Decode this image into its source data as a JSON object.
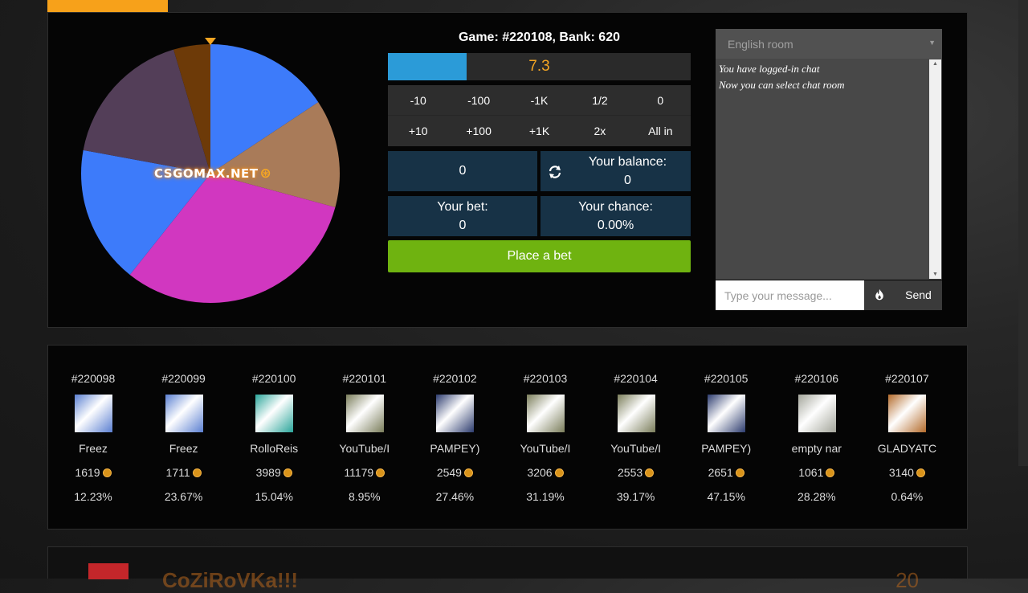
{
  "game": {
    "title": "Game: #220108, Bank: 620",
    "timer_value": "7.3",
    "timer_progress": 0.26
  },
  "wheel": {
    "logo_text": "CSGOMAX.NET",
    "slices": [
      {
        "value": 0.157,
        "color": "#3d7bfa"
      },
      {
        "value": 0.135,
        "color": "#a97b59"
      },
      {
        "value": 0.315,
        "color": "#d137c0"
      },
      {
        "value": 0.172,
        "color": "#3d7bfa"
      },
      {
        "value": 0.175,
        "color": "#533e58"
      },
      {
        "value": 0.046,
        "color": "#6d3a08"
      }
    ],
    "pointer_color": "#f5a623"
  },
  "adjust_buttons": {
    "row1": [
      "-10",
      "-100",
      "-1K",
      "1/2",
      "0"
    ],
    "row2": [
      "+10",
      "+100",
      "+1K",
      "2x",
      "All in"
    ]
  },
  "bet": {
    "input_value": "0",
    "balance_label": "Your balance:",
    "balance_value": "0",
    "your_bet_label": "Your bet:",
    "your_bet_value": "0",
    "chance_label": "Your chance:",
    "chance_value": "0.00%",
    "place_bet_label": "Place a bet"
  },
  "chat": {
    "room": "English room",
    "messages": [
      "You have logged-in chat",
      "Now you can select chat room"
    ],
    "input_placeholder": "Type your message...",
    "send_label": "Send"
  },
  "history": [
    {
      "id": "#220098",
      "name": "Freez",
      "amount": "1619",
      "chance": "12.23%",
      "avatar_color": "#5a7fd1"
    },
    {
      "id": "#220099",
      "name": "Freez",
      "amount": "1711",
      "chance": "23.67%",
      "avatar_color": "#5a7fd1"
    },
    {
      "id": "#220100",
      "name": "RolloReis",
      "amount": "3989",
      "chance": "15.04%",
      "avatar_color": "#2aa59a"
    },
    {
      "id": "#220101",
      "name": "YouTube/I",
      "amount": "11179",
      "chance": "8.95%",
      "avatar_color": "#7a7d5a"
    },
    {
      "id": "#220102",
      "name": "PAMPEY)",
      "amount": "2549",
      "chance": "27.46%",
      "avatar_color": "#2c3b6e"
    },
    {
      "id": "#220103",
      "name": "YouTube/I",
      "amount": "3206",
      "chance": "31.19%",
      "avatar_color": "#7a7d5a"
    },
    {
      "id": "#220104",
      "name": "YouTube/I",
      "amount": "2553",
      "chance": "39.17%",
      "avatar_color": "#7a7d5a"
    },
    {
      "id": "#220105",
      "name": "PAMPEY)",
      "amount": "2651",
      "chance": "47.15%",
      "avatar_color": "#2c3b6e"
    },
    {
      "id": "#220106",
      "name": "empty nar",
      "amount": "1061",
      "chance": "28.28%",
      "avatar_color": "#a3a59a"
    },
    {
      "id": "#220107",
      "name": "GLADYATC",
      "amount": "3140",
      "chance": "0.64%",
      "avatar_color": "#b36a2a"
    }
  ],
  "bottom": {
    "name": "CoZiRoVKa!!!",
    "amount": "20"
  },
  "colors": {
    "accent": "#f7a11a",
    "bet_box": "#173246",
    "place_bet": "#6fb310",
    "timer": "#2b9bd8"
  }
}
